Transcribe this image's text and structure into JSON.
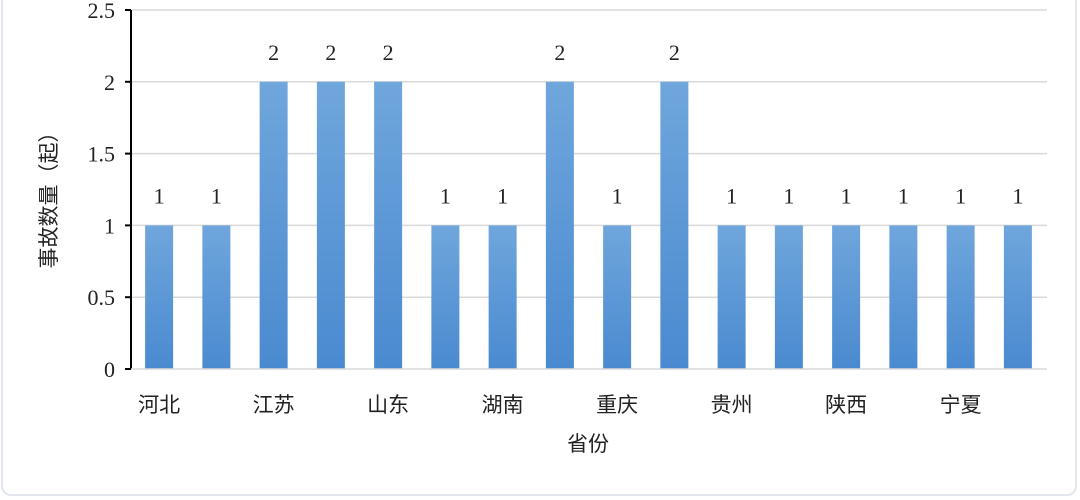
{
  "chart_data": {
    "type": "bar",
    "categories": [
      "河北",
      "",
      "江苏",
      "",
      "山东",
      "",
      "湖南",
      "",
      "重庆",
      "",
      "贵州",
      "",
      "陕西",
      "",
      "宁夏",
      ""
    ],
    "values": [
      1,
      1,
      2,
      2,
      2,
      1,
      1,
      2,
      1,
      2,
      1,
      1,
      1,
      1,
      1,
      1
    ],
    "xlabel": "省份",
    "ylabel": "事故数量（起）",
    "ylim": [
      0,
      2.5
    ],
    "yticks": [
      "0",
      "0.5",
      "1",
      "1.5",
      "2",
      "2.5"
    ],
    "grid": true,
    "data_labels": true,
    "bar_color": "#5b9bd5"
  }
}
